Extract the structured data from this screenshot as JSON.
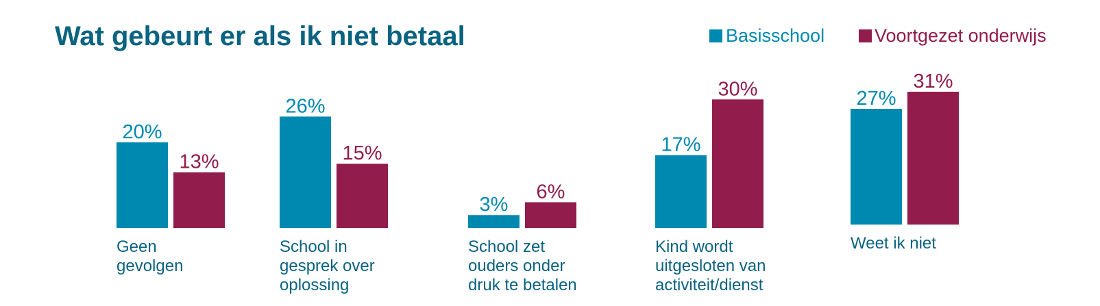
{
  "chart_data": {
    "type": "bar",
    "title": "Wat gebeurt er als ik niet betaal",
    "categories": [
      [
        "Geen",
        "gevolgen"
      ],
      [
        "School in",
        "gesprek over",
        "oplossing"
      ],
      [
        "School zet",
        "ouders onder",
        "druk te betalen"
      ],
      [
        "Kind wordt",
        "uitgesloten van",
        "activiteit/dienst"
      ],
      [
        "Weet ik niet"
      ]
    ],
    "series": [
      {
        "name": "Basisschool",
        "color": "#0089b0",
        "values": [
          20,
          26,
          3,
          17,
          27
        ],
        "labels": [
          "20%",
          "26%",
          "3%",
          "17%",
          "27%"
        ]
      },
      {
        "name": "Voortgezet onderwijs",
        "color": "#921c4c",
        "values": [
          13,
          15,
          6,
          30,
          31
        ],
        "labels": [
          "13%",
          "15%",
          "6%",
          "30%",
          "31%"
        ]
      }
    ],
    "ylim": [
      0,
      31
    ],
    "grid": false,
    "legend": "top-right"
  },
  "colors": {
    "title": "#0a6380",
    "category_text": "#0a6380"
  }
}
